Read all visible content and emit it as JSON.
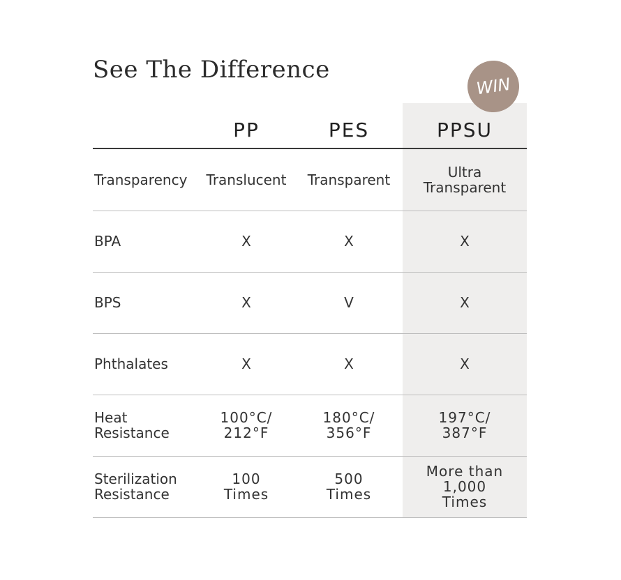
{
  "title": "See The Difference",
  "badge": "WIN",
  "colors": {
    "highlight_bg": "#efeeed",
    "badge": "#a89387",
    "header_line": "#3a3a3a",
    "row_line": "#bdbdbd"
  },
  "columns": [
    "PP",
    "PES",
    "PPSU"
  ],
  "rows": [
    {
      "label": "Transparency",
      "values": [
        "Translucent",
        "Transparent",
        "Ultra\nTransparent"
      ]
    },
    {
      "label": "BPA",
      "values": [
        "X",
        "X",
        "X"
      ]
    },
    {
      "label": "BPS",
      "values": [
        "X",
        "V",
        "X"
      ]
    },
    {
      "label": "Phthalates",
      "values": [
        "X",
        "X",
        "X"
      ]
    },
    {
      "label": "Heat\nResistance",
      "values": [
        "100°C/\n212°F",
        "180°C/\n356°F",
        "197°C/\n387°F"
      ]
    },
    {
      "label": "Sterilization\nResistance",
      "values": [
        "100\nTimes",
        "500\nTimes",
        "More than\n1,000\nTimes"
      ]
    }
  ]
}
